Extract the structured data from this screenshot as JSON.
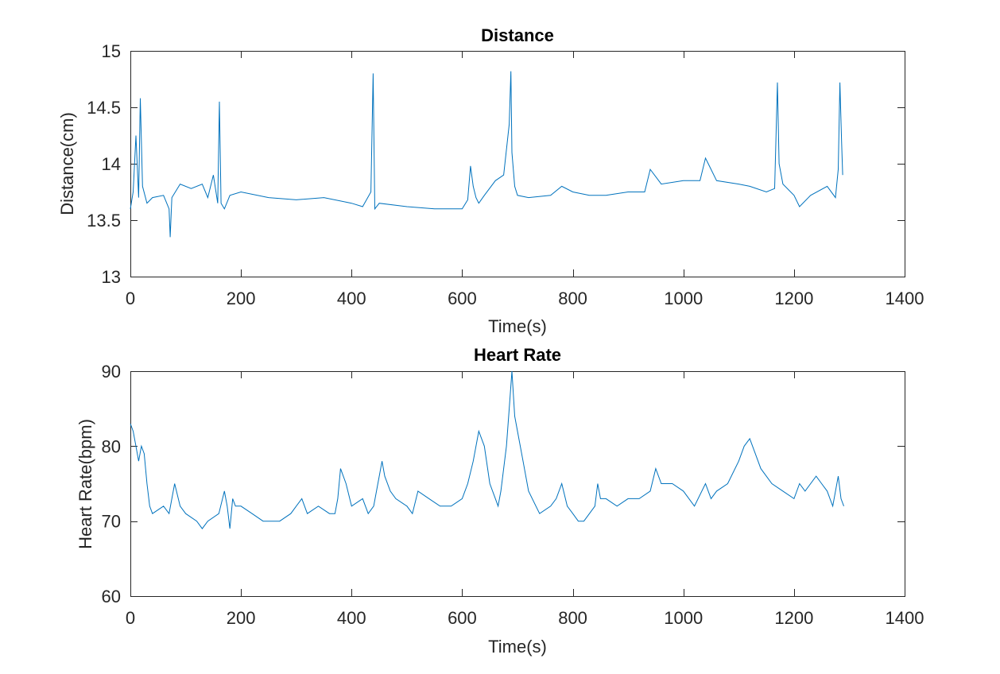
{
  "chart_data": [
    {
      "type": "line",
      "title": "Distance",
      "xlabel": "Time(s)",
      "ylabel": "Distance(cm)",
      "xlim": [
        0,
        1400
      ],
      "ylim": [
        13,
        15
      ],
      "xticks": [
        0,
        200,
        400,
        600,
        800,
        1000,
        1200,
        1400
      ],
      "yticks": [
        13,
        13.5,
        14,
        14.5,
        15
      ],
      "ytick_labels": [
        "13",
        "13.5",
        "14",
        "14.5",
        "15"
      ],
      "grid": false,
      "color": "#0072BD",
      "series": [
        {
          "x": [
            0,
            5,
            10,
            15,
            18,
            22,
            30,
            40,
            60,
            70,
            72,
            75,
            90,
            110,
            130,
            140,
            150,
            158,
            161,
            164,
            170,
            180,
            200,
            250,
            300,
            350,
            400,
            420,
            435,
            439,
            442,
            450,
            500,
            550,
            600,
            610,
            615,
            620,
            625,
            630,
            640,
            660,
            675,
            685,
            688,
            690,
            695,
            700,
            720,
            760,
            780,
            800,
            830,
            860,
            900,
            930,
            940,
            960,
            1000,
            1030,
            1040,
            1060,
            1100,
            1120,
            1150,
            1165,
            1170,
            1173,
            1180,
            1200,
            1210,
            1230,
            1260,
            1275,
            1280,
            1283,
            1286,
            1288
          ],
          "y": [
            13.6,
            13.75,
            14.25,
            13.7,
            14.58,
            13.8,
            13.65,
            13.7,
            13.72,
            13.6,
            13.35,
            13.7,
            13.82,
            13.78,
            13.82,
            13.7,
            13.9,
            13.65,
            14.55,
            13.65,
            13.6,
            13.72,
            13.75,
            13.7,
            13.68,
            13.7,
            13.65,
            13.62,
            13.75,
            14.8,
            13.6,
            13.65,
            13.62,
            13.6,
            13.6,
            13.68,
            13.98,
            13.8,
            13.7,
            13.65,
            13.72,
            13.85,
            13.9,
            14.35,
            14.82,
            14.1,
            13.8,
            13.72,
            13.7,
            13.72,
            13.8,
            13.75,
            13.72,
            13.72,
            13.75,
            13.75,
            13.95,
            13.82,
            13.85,
            13.85,
            14.05,
            13.85,
            13.82,
            13.8,
            13.75,
            13.78,
            14.72,
            14.0,
            13.82,
            13.72,
            13.62,
            13.72,
            13.8,
            13.7,
            13.95,
            14.72,
            14.2,
            13.9
          ]
        }
      ]
    },
    {
      "type": "line",
      "title": "Heart Rate",
      "xlabel": "Time(s)",
      "ylabel": "Heart Rate(bpm)",
      "xlim": [
        0,
        1400
      ],
      "ylim": [
        60,
        90
      ],
      "xticks": [
        0,
        200,
        400,
        600,
        800,
        1000,
        1200,
        1400
      ],
      "yticks": [
        60,
        70,
        80,
        90
      ],
      "ytick_labels": [
        "60",
        "70",
        "80",
        "90"
      ],
      "grid": false,
      "color": "#0072BD",
      "series": [
        {
          "x": [
            0,
            5,
            10,
            15,
            20,
            25,
            30,
            35,
            40,
            60,
            70,
            80,
            90,
            100,
            120,
            130,
            140,
            160,
            170,
            175,
            180,
            185,
            190,
            200,
            220,
            240,
            250,
            270,
            290,
            300,
            310,
            320,
            340,
            360,
            370,
            375,
            380,
            390,
            400,
            420,
            430,
            440,
            450,
            455,
            460,
            470,
            480,
            500,
            510,
            520,
            540,
            560,
            580,
            600,
            610,
            620,
            630,
            640,
            650,
            660,
            665,
            670,
            680,
            685,
            690,
            695,
            700,
            710,
            720,
            740,
            760,
            770,
            780,
            790,
            800,
            810,
            820,
            840,
            845,
            850,
            860,
            880,
            900,
            920,
            940,
            950,
            960,
            980,
            1000,
            1020,
            1040,
            1050,
            1060,
            1080,
            1100,
            1110,
            1120,
            1130,
            1140,
            1160,
            1180,
            1200,
            1210,
            1220,
            1240,
            1250,
            1260,
            1265,
            1270,
            1280,
            1285,
            1290
          ],
          "y": [
            83,
            82,
            80,
            78,
            80,
            79,
            75,
            72,
            71,
            72,
            71,
            75,
            72,
            71,
            70,
            69,
            70,
            71,
            74,
            72,
            69,
            73,
            72,
            72,
            71,
            70,
            70,
            70,
            71,
            72,
            73,
            71,
            72,
            71,
            71,
            73,
            77,
            75,
            72,
            73,
            71,
            72,
            76,
            78,
            76,
            74,
            73,
            72,
            71,
            74,
            73,
            72,
            72,
            73,
            75,
            78,
            82,
            80,
            75,
            73,
            72,
            74,
            80,
            85,
            90,
            84,
            82,
            78,
            74,
            71,
            72,
            73,
            75,
            72,
            71,
            70,
            70,
            72,
            75,
            73,
            73,
            72,
            73,
            73,
            74,
            77,
            75,
            75,
            74,
            72,
            75,
            73,
            74,
            75,
            78,
            80,
            81,
            79,
            77,
            75,
            74,
            73,
            75,
            74,
            76,
            75,
            74,
            73,
            72,
            76,
            73,
            72
          ]
        }
      ]
    }
  ]
}
